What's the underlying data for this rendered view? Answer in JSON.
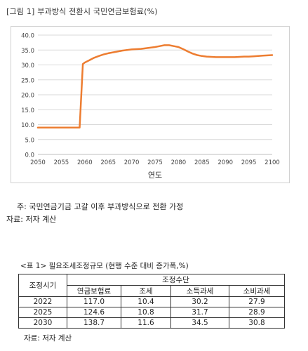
{
  "figure": {
    "title": "[그림 1] 부과방식 전환시 국민연금보험료(%)",
    "note": "주: 국민연금기금 고갈 이후 부과방식으로 전환 가정",
    "source": "자료: 저자 계산"
  },
  "chart_data": {
    "type": "line",
    "title": "",
    "xlabel": "연도",
    "ylabel": "",
    "xlim": [
      2050,
      2100
    ],
    "ylim": [
      0,
      40
    ],
    "x_ticks": [
      2050,
      2055,
      2060,
      2065,
      2070,
      2075,
      2080,
      2085,
      2090,
      2095,
      2100
    ],
    "y_ticks": [
      "0.0",
      "5.0",
      "10.0",
      "15.0",
      "20.0",
      "25.0",
      "30.0",
      "35.0",
      "40.0"
    ],
    "grid": true,
    "legend": "none",
    "series": [
      {
        "color": "#ed7d31",
        "x": [
          2050,
          2051,
          2052,
          2053,
          2054,
          2055,
          2056,
          2057,
          2058,
          2058.9,
          2059.6,
          2060,
          2061,
          2062,
          2063,
          2064,
          2065,
          2066,
          2067,
          2068,
          2069,
          2070,
          2071,
          2072,
          2073,
          2074,
          2075,
          2076,
          2077,
          2078,
          2079,
          2080,
          2081,
          2082,
          2083,
          2084,
          2085,
          2086,
          2087,
          2088,
          2089,
          2090,
          2091,
          2092,
          2093,
          2094,
          2095,
          2096,
          2097,
          2098,
          2099,
          2100
        ],
        "y": [
          9.0,
          9.0,
          9.0,
          9.0,
          9.0,
          9.0,
          9.0,
          9.0,
          9.0,
          9.0,
          30.3,
          30.8,
          31.6,
          32.4,
          33.0,
          33.5,
          33.9,
          34.2,
          34.5,
          34.8,
          35.0,
          35.2,
          35.3,
          35.4,
          35.6,
          35.8,
          36.0,
          36.3,
          36.6,
          36.6,
          36.3,
          36.0,
          35.3,
          34.5,
          33.8,
          33.3,
          33.0,
          32.8,
          32.7,
          32.6,
          32.6,
          32.6,
          32.6,
          32.6,
          32.7,
          32.8,
          32.8,
          32.9,
          33.0,
          33.1,
          33.2,
          33.3
        ]
      }
    ]
  },
  "table": {
    "title": "<표 1> 필요조세조정규모 (현행 수준 대비 증가폭,%)",
    "row_header": "조정시기",
    "group_header": "조정수단",
    "columns": [
      "연금보험료",
      "조세",
      "소득과세",
      "소비과세"
    ],
    "rows": [
      {
        "year": "2022",
        "values": [
          "117.0",
          "10.4",
          "30.2",
          "27.9"
        ]
      },
      {
        "year": "2025",
        "values": [
          "124.6",
          "10.8",
          "31.7",
          "28.9"
        ]
      },
      {
        "year": "2030",
        "values": [
          "138.7",
          "11.6",
          "34.5",
          "30.8"
        ]
      }
    ],
    "source": "자료: 저자 계산"
  }
}
